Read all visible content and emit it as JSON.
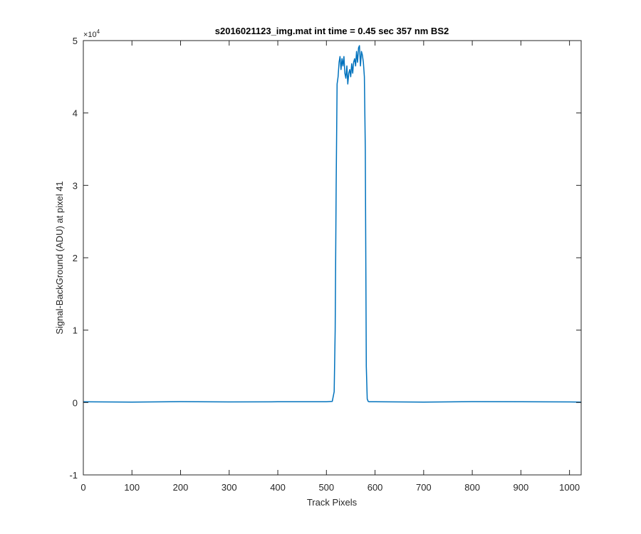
{
  "chart_data": {
    "type": "line",
    "title": "s2016021123_img.mat int time = 0.45 sec  357 nm BS2",
    "xlabel": "Track Pixels",
    "ylabel": "Signal-BackGround (ADU) at pixel 41",
    "xlim": [
      0,
      1024
    ],
    "ylim": [
      -10000,
      50000
    ],
    "x_ticks": [
      0,
      100,
      200,
      300,
      400,
      500,
      600,
      700,
      800,
      900,
      1000
    ],
    "x_tick_labels": [
      "0",
      "100",
      "200",
      "300",
      "400",
      "500",
      "600",
      "700",
      "800",
      "900",
      "1000"
    ],
    "y_ticks": [
      -10000,
      0,
      10000,
      20000,
      30000,
      40000,
      50000
    ],
    "y_tick_labels": [
      "-1",
      "0",
      "1",
      "2",
      "3",
      "4",
      "5"
    ],
    "y_exponent_label": "×10",
    "y_exponent_power": "4",
    "grid": false,
    "box": true,
    "series": [
      {
        "color": "#0072BD",
        "x": [
          0,
          100,
          200,
          300,
          400,
          500,
          512,
          516,
          518,
          520,
          522,
          524,
          526,
          528,
          530,
          532,
          534,
          536,
          538,
          540,
          542,
          544,
          546,
          548,
          550,
          552,
          554,
          556,
          558,
          560,
          562,
          564,
          566,
          568,
          570,
          572,
          574,
          576,
          578,
          580,
          582,
          584,
          586,
          588,
          600,
          700,
          800,
          900,
          1000,
          1024
        ],
        "y": [
          100,
          50,
          120,
          80,
          100,
          100,
          150,
          1500,
          10000,
          30000,
          44000,
          45000,
          47000,
          47800,
          46000,
          47500,
          46500,
          47800,
          45500,
          44800,
          46500,
          44000,
          45500,
          46000,
          45000,
          46800,
          45500,
          47000,
          47500,
          46500,
          48500,
          47000,
          49000,
          49300,
          46500,
          48500,
          48000,
          47000,
          45000,
          35000,
          5000,
          500,
          150,
          100,
          100,
          50,
          120,
          100,
          80,
          50
        ]
      }
    ]
  }
}
